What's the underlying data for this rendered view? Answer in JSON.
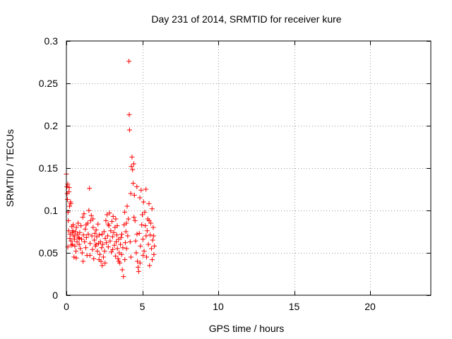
{
  "chart_data": {
    "type": "scatter",
    "title": "Day 231 of 2014, SRMTID for receiver kure",
    "xlabel": "GPS time / hours",
    "ylabel": "SRMTID / TECUs",
    "xlim": [
      0,
      24
    ],
    "ylim": [
      0,
      0.3
    ],
    "x_ticks": [
      0,
      5,
      10,
      15,
      20
    ],
    "x_tick_labels": [
      "0",
      "5",
      "10",
      "15",
      "20"
    ],
    "y_ticks": [
      0,
      0.05,
      0.1,
      0.15,
      0.2,
      0.25,
      0.3
    ],
    "y_tick_labels": [
      "0",
      "0.05",
      "0.1",
      "0.15",
      "0.2",
      "0.25",
      "0.3"
    ],
    "grid": true,
    "marker": "+",
    "color": "#ff0000",
    "series": [
      {
        "name": "SRMTID",
        "points": [
          [
            0.0,
            0.143
          ],
          [
            0.03,
            0.128
          ],
          [
            0.05,
            0.12
          ],
          [
            0.07,
            0.113
          ],
          [
            0.09,
            0.131
          ],
          [
            0.11,
            0.098
          ],
          [
            0.13,
            0.088
          ],
          [
            0.15,
            0.076
          ],
          [
            0.17,
            0.122
          ],
          [
            0.19,
            0.127
          ],
          [
            0.21,
            0.105
          ],
          [
            0.23,
            0.067
          ],
          [
            0.25,
            0.072
          ],
          [
            0.27,
            0.11
          ],
          [
            0.29,
            0.108
          ],
          [
            0.31,
            0.064
          ],
          [
            0.33,
            0.059
          ],
          [
            0.36,
            0.081
          ],
          [
            0.38,
            0.074
          ],
          [
            0.4,
            0.06
          ],
          [
            0.43,
            0.076
          ],
          [
            0.46,
            0.07
          ],
          [
            0.5,
            0.045
          ],
          [
            0.53,
            0.066
          ],
          [
            0.56,
            0.058
          ],
          [
            0.6,
            0.075
          ],
          [
            0.63,
            0.052
          ],
          [
            0.66,
            0.08
          ],
          [
            0.7,
            0.063
          ],
          [
            0.73,
            0.072
          ],
          [
            0.77,
            0.085
          ],
          [
            0.8,
            0.068
          ],
          [
            0.84,
            0.06
          ],
          [
            0.88,
            0.074
          ],
          [
            0.92,
            0.055
          ],
          [
            0.96,
            0.082
          ],
          [
            1.0,
            0.066
          ],
          [
            1.04,
            0.05
          ],
          [
            1.08,
            0.092
          ],
          [
            1.12,
            0.071
          ],
          [
            1.16,
            0.096
          ],
          [
            1.2,
            0.063
          ],
          [
            1.24,
            0.078
          ],
          [
            1.28,
            0.056
          ],
          [
            1.32,
            0.068
          ],
          [
            1.36,
            0.047
          ],
          [
            1.4,
            0.085
          ],
          [
            1.44,
            0.072
          ],
          [
            1.48,
            0.1
          ],
          [
            1.52,
            0.126
          ],
          [
            1.56,
            0.061
          ],
          [
            1.6,
            0.088
          ],
          [
            1.64,
            0.094
          ],
          [
            1.68,
            0.07
          ],
          [
            1.72,
            0.054
          ],
          [
            1.76,
            0.08
          ],
          [
            1.8,
            0.043
          ],
          [
            1.84,
            0.065
          ],
          [
            1.88,
            0.073
          ],
          [
            1.92,
            0.058
          ],
          [
            1.96,
            0.077
          ],
          [
            2.0,
            0.069
          ],
          [
            2.04,
            0.052
          ],
          [
            2.08,
            0.084
          ],
          [
            2.12,
            0.061
          ],
          [
            2.16,
            0.071
          ],
          [
            2.2,
            0.048
          ],
          [
            2.24,
            0.063
          ],
          [
            2.28,
            0.04
          ],
          [
            2.32,
            0.056
          ],
          [
            2.36,
            0.035
          ],
          [
            2.4,
            0.06
          ],
          [
            2.44,
            0.045
          ],
          [
            2.48,
            0.075
          ],
          [
            2.52,
            0.052
          ],
          [
            2.56,
            0.067
          ],
          [
            2.6,
            0.088
          ],
          [
            2.64,
            0.062
          ],
          [
            2.68,
            0.095
          ],
          [
            2.72,
            0.07
          ],
          [
            2.76,
            0.057
          ],
          [
            2.8,
            0.082
          ],
          [
            2.84,
            0.097
          ],
          [
            2.88,
            0.064
          ],
          [
            2.92,
            0.076
          ],
          [
            2.96,
            0.051
          ],
          [
            3.0,
            0.087
          ],
          [
            3.04,
            0.069
          ],
          [
            3.08,
            0.093
          ],
          [
            3.12,
            0.074
          ],
          [
            3.16,
            0.059
          ],
          [
            3.2,
            0.08
          ],
          [
            3.24,
            0.046
          ],
          [
            3.28,
            0.063
          ],
          [
            3.32,
            0.071
          ],
          [
            3.36,
            0.055
          ],
          [
            3.4,
            0.043
          ],
          [
            3.44,
            0.066
          ],
          [
            3.48,
            0.05
          ],
          [
            3.52,
            0.038
          ],
          [
            3.56,
            0.06
          ],
          [
            3.6,
            0.068
          ],
          [
            3.64,
            0.048
          ],
          [
            3.68,
            0.03
          ],
          [
            3.72,
            0.056
          ],
          [
            3.76,
            0.022
          ],
          [
            3.8,
            0.083
          ],
          [
            3.84,
            0.098
          ],
          [
            3.88,
            0.062
          ],
          [
            3.92,
            0.075
          ],
          [
            3.96,
            0.055
          ],
          [
            4.0,
            0.105
          ],
          [
            4.04,
            0.07
          ],
          [
            4.08,
            0.09
          ],
          [
            4.12,
            0.276
          ],
          [
            4.14,
            0.213
          ],
          [
            4.16,
            0.195
          ],
          [
            4.2,
            0.063
          ],
          [
            4.24,
            0.12
          ],
          [
            4.28,
            0.152
          ],
          [
            4.32,
            0.163
          ],
          [
            4.36,
            0.148
          ],
          [
            4.4,
            0.132
          ],
          [
            4.44,
            0.155
          ],
          [
            4.48,
            0.118
          ],
          [
            4.52,
            0.088
          ],
          [
            4.56,
            0.064
          ],
          [
            4.6,
            0.05
          ],
          [
            4.64,
            0.128
          ],
          [
            4.68,
            0.04
          ],
          [
            4.72,
            0.033
          ],
          [
            4.76,
            0.028
          ],
          [
            4.8,
            0.073
          ],
          [
            4.84,
            0.115
          ],
          [
            4.88,
            0.058
          ],
          [
            4.92,
            0.124
          ],
          [
            4.96,
            0.083
          ],
          [
            5.0,
            0.095
          ],
          [
            5.04,
            0.066
          ],
          [
            5.08,
            0.11
          ],
          [
            5.12,
            0.052
          ],
          [
            5.16,
            0.098
          ],
          [
            5.2,
            0.082
          ],
          [
            5.24,
            0.125
          ],
          [
            5.28,
            0.045
          ],
          [
            5.32,
            0.076
          ],
          [
            5.36,
            0.09
          ],
          [
            5.4,
            0.06
          ],
          [
            5.44,
            0.108
          ],
          [
            5.48,
            0.035
          ],
          [
            5.52,
            0.071
          ],
          [
            5.56,
            0.085
          ],
          [
            5.6,
            0.055
          ],
          [
            5.64,
            0.102
          ],
          [
            5.68,
            0.065
          ],
          [
            5.72,
            0.08
          ],
          [
            5.76,
            0.048
          ],
          [
            5.8,
            0.058
          ],
          [
            0.1,
            0.057
          ],
          [
            0.45,
            0.083
          ],
          [
            0.65,
            0.044
          ],
          [
            0.85,
            0.067
          ],
          [
            1.1,
            0.04
          ],
          [
            1.3,
            0.083
          ],
          [
            1.55,
            0.047
          ],
          [
            1.75,
            0.09
          ],
          [
            2.15,
            0.042
          ],
          [
            2.35,
            0.072
          ],
          [
            2.55,
            0.038
          ],
          [
            2.75,
            0.084
          ],
          [
            3.05,
            0.054
          ],
          [
            3.25,
            0.09
          ],
          [
            3.45,
            0.04
          ],
          [
            3.65,
            0.072
          ],
          [
            3.85,
            0.042
          ],
          [
            3.95,
            0.085
          ],
          [
            4.25,
            0.045
          ],
          [
            4.45,
            0.092
          ],
          [
            4.65,
            0.072
          ],
          [
            4.85,
            0.038
          ],
          [
            5.05,
            0.047
          ],
          [
            5.25,
            0.07
          ],
          [
            5.45,
            0.088
          ],
          [
            5.65,
            0.042
          ],
          [
            5.75,
            0.07
          ],
          [
            0.55,
            0.07
          ],
          [
            1.95,
            0.06
          ],
          [
            3.35,
            0.082
          ]
        ]
      }
    ]
  }
}
